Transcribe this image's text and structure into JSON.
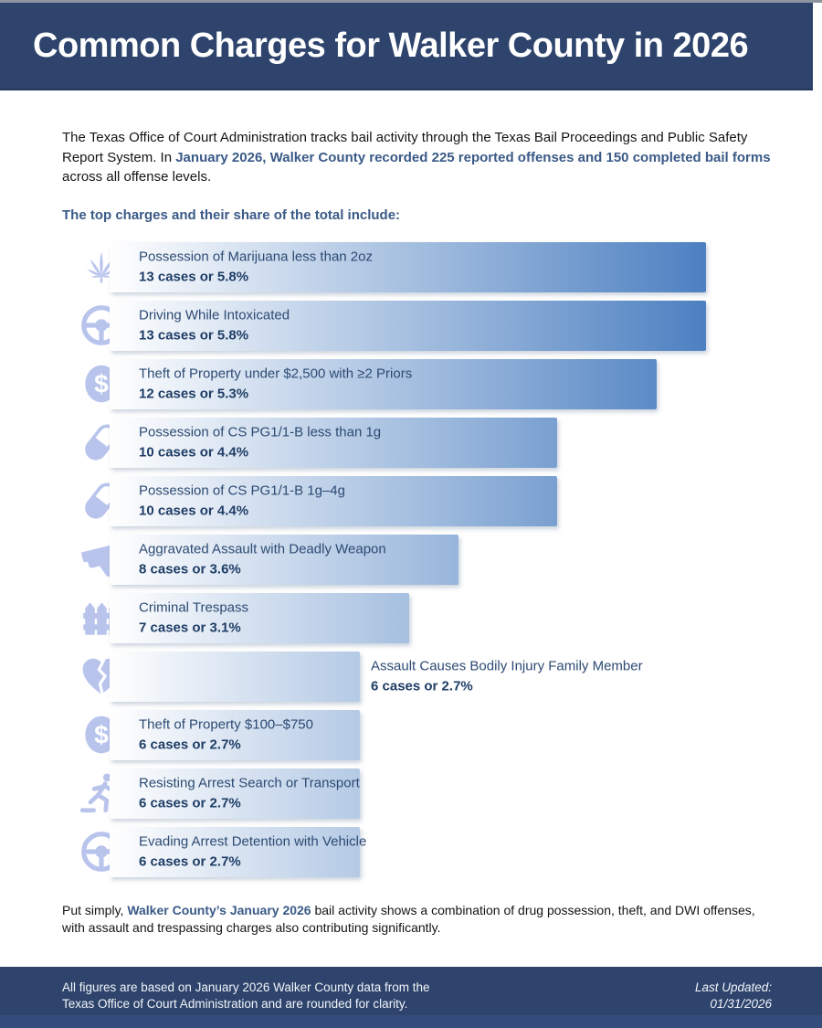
{
  "header": {
    "title": "Common Charges for Walker County in 2026"
  },
  "intro": {
    "pre": "The Texas Office of Court Administration tracks bail activity through the Texas Bail Proceedings and Public Safety Report System. In ",
    "bold": "January 2026, Walker County recorded 225 reported offenses and 150 completed bail forms",
    "post": " across all offense levels."
  },
  "chart_data": {
    "type": "bar",
    "orientation": "horizontal",
    "title": "The top charges and their share of the total include:",
    "unit": "cases",
    "context": {
      "reported_offenses": 225,
      "completed_bail_forms": 150,
      "period": "January 2026"
    },
    "items": [
      {
        "label": "Possession of Marijuana less than 2oz",
        "cases": 13,
        "percent": 5.8,
        "value_text": "13 cases or 5.8%",
        "icon": "marijuana-leaf-icon",
        "text_outside": false
      },
      {
        "label": "Driving While Intoxicated",
        "cases": 13,
        "percent": 5.8,
        "value_text": "13 cases or 5.8%",
        "icon": "steering-wheel-icon",
        "text_outside": false
      },
      {
        "label": "Theft of Property under $2,500 with ≥2 Priors",
        "cases": 12,
        "percent": 5.3,
        "value_text": "12 cases or 5.3%",
        "icon": "dollar-circle-icon",
        "text_outside": false
      },
      {
        "label": "Possession of CS PG1/1-B less than 1g",
        "cases": 10,
        "percent": 4.4,
        "value_text": "10 cases or 4.4%",
        "icon": "pill-icon",
        "text_outside": false
      },
      {
        "label": "Possession of CS PG1/1-B 1g–4g",
        "cases": 10,
        "percent": 4.4,
        "value_text": "10 cases or 4.4%",
        "icon": "pill-icon",
        "text_outside": false
      },
      {
        "label": "Aggravated Assault with Deadly Weapon",
        "cases": 8,
        "percent": 3.6,
        "value_text": "8 cases or 3.6%",
        "icon": "handgun-icon",
        "text_outside": false
      },
      {
        "label": "Criminal Trespass",
        "cases": 7,
        "percent": 3.1,
        "value_text": "7 cases or 3.1%",
        "icon": "fence-icon",
        "text_outside": false
      },
      {
        "label": "Assault Causes Bodily Injury Family Member",
        "cases": 6,
        "percent": 2.7,
        "value_text": "6 cases or 2.7%",
        "icon": "broken-heart-icon",
        "text_outside": true
      },
      {
        "label": "Theft of Property $100–$750",
        "cases": 6,
        "percent": 2.7,
        "value_text": "6 cases or 2.7%",
        "icon": "dollar-circle-icon",
        "text_outside": false
      },
      {
        "label": "Resisting Arrest Search or Transport",
        "cases": 6,
        "percent": 2.7,
        "value_text": "6 cases or 2.7%",
        "icon": "running-person-icon",
        "text_outside": false
      },
      {
        "label": "Evading Arrest Detention with Vehicle",
        "cases": 6,
        "percent": 2.7,
        "value_text": "6 cases or 2.7%",
        "icon": "steering-wheel-icon",
        "text_outside": false
      }
    ]
  },
  "summary": {
    "pre": "Put simply, ",
    "bold": "Walker County’s January 2026",
    "post": " bail activity shows a combination of drug possession, theft, and DWI offenses, with assault and trespassing charges also contributing significantly."
  },
  "footer": {
    "left_line1": "All figures are based on January 2026 Walker County data from the",
    "left_line2": "Texas Office of Court Administration and are rounded for clarity.",
    "right_line1": "Last Updated:",
    "right_line2": "01/31/2026"
  },
  "colors": {
    "header_navy": "#2e446d",
    "bar_blue": "#4d80c1",
    "icon_lavender": "#b9c4ed",
    "label_navy": "#2c4a73",
    "value_navy": "#1f3d66",
    "accent_steel_blue": "#3a5a87"
  }
}
